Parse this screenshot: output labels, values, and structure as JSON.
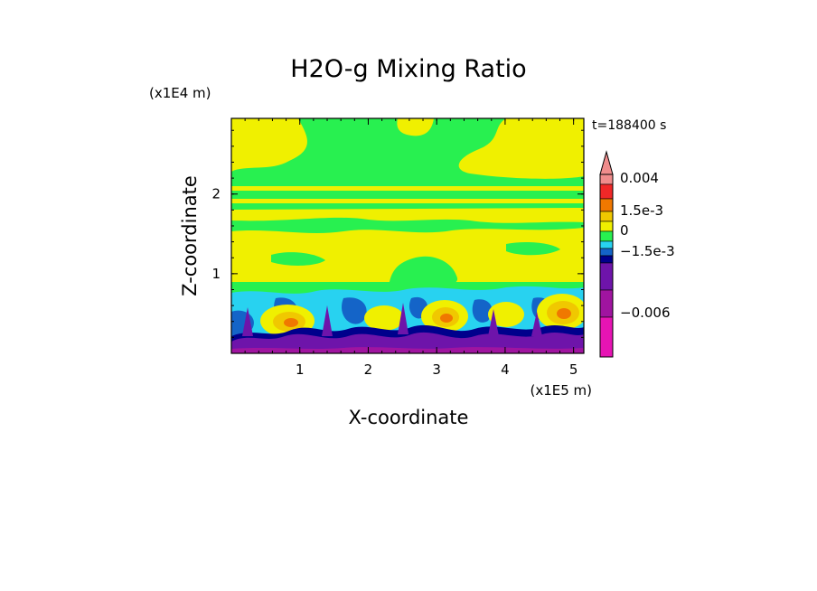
{
  "chart_data": {
    "type": "heatmap",
    "title": "H2O-g Mixing Ratio",
    "xlabel": "X-coordinate",
    "ylabel": "Z-coordinate",
    "x_scale_label": "(x1E5 m)",
    "y_scale_label": "(x1E4 m)",
    "time_label": "t=188400 s",
    "xlim": [
      0,
      5.15
    ],
    "ylim": [
      0,
      2.95
    ],
    "x_ticks": [
      1,
      2,
      3,
      4,
      5
    ],
    "x_tick_labels": [
      "1",
      "2",
      "3",
      "4",
      "5"
    ],
    "y_ticks": [
      1,
      2
    ],
    "y_tick_labels": [
      "1",
      "2"
    ],
    "colorbar": {
      "levels": [
        {
          "upper": "0.004",
          "color": "#f08c8c"
        },
        {
          "upper": "0.0035",
          "color": "#f02828"
        },
        {
          "upper": "0.0025",
          "color": "#f07800"
        },
        {
          "upper": "0.0015",
          "color": "#f0c800"
        },
        {
          "upper": "0.0005",
          "color": "#f0f000"
        },
        {
          "upper": "-0.0005",
          "color": "#28f050"
        },
        {
          "upper": "-0.001",
          "color": "#28d2f0"
        },
        {
          "upper": "-0.0015",
          "color": "#1464c8"
        },
        {
          "upper": "-0.002",
          "color": "#00008c"
        },
        {
          "upper": "-0.004",
          "color": "#6e14aa"
        },
        {
          "upper": "-0.005",
          "color": "#a014a0"
        },
        {
          "upper": "-0.008",
          "color": "#e614b4"
        }
      ],
      "labels": [
        "0.004",
        "1.5e-3",
        "0",
        "−1.5e-3",
        "−0.006"
      ]
    },
    "field_regions": [
      {
        "level": "-0.0005",
        "desc": "upper layer z 2.1-2.95"
      },
      {
        "level": "0.0005",
        "desc": "yellow layers z 0.8-2.6"
      },
      {
        "level": "-0.001",
        "desc": "cyan band z 0.6-0.8"
      },
      {
        "level": "-0.004",
        "desc": "purple near surface z 0-0.25"
      },
      {
        "level": "0.0025",
        "desc": "orange cells at x 0.8, 3.0, 4.8 near z 0.5"
      }
    ]
  }
}
